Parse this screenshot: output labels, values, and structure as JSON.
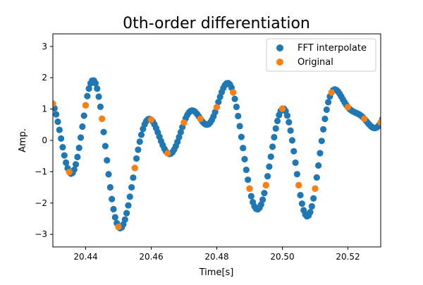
{
  "chart_data": {
    "type": "scatter",
    "title": "0th-order differentiation",
    "xlabel": "Time[s]",
    "ylabel": "Amp.",
    "xlim": [
      20.43,
      20.53
    ],
    "ylim": [
      -3.4,
      3.4
    ],
    "xticks": [
      20.44,
      20.46,
      20.48,
      20.5,
      20.52
    ],
    "xtick_labels": [
      "20.44",
      "20.46",
      "20.48",
      "20.50",
      "20.52"
    ],
    "yticks": [
      -3,
      -2,
      -1,
      0,
      1,
      2,
      3
    ],
    "ytick_labels": [
      "−3",
      "−2",
      "−1",
      "0",
      "1",
      "2",
      "3"
    ],
    "grid": false,
    "legend_position": "top-right",
    "series": [
      {
        "name": "FFT interpolate",
        "color": "#1f77b4",
        "derived_from": "Original",
        "upsample_factor": 10
      },
      {
        "name": "Original",
        "color": "#ff7f0e",
        "x_start": 20.43,
        "x_step": 0.005,
        "values": [
          1.17,
          -1.01,
          1.12,
          0.69,
          -2.76,
          -0.88,
          0.66,
          -0.41,
          0.57,
          0.69,
          1.06,
          1.53,
          -1.54,
          -1.43,
          1.01,
          -1.43,
          -1.54,
          1.53,
          1.06,
          0.69,
          0.57
        ]
      }
    ]
  }
}
